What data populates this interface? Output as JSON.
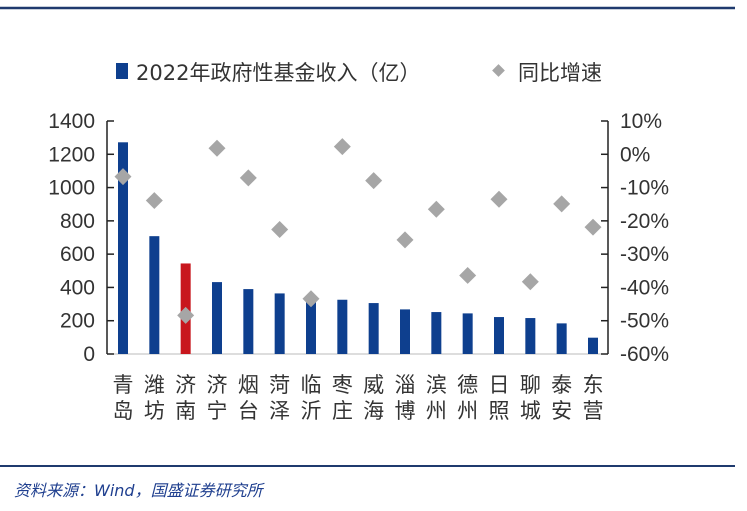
{
  "chart_data": {
    "type": "bar",
    "categories": [
      [
        "青",
        "岛"
      ],
      [
        "潍",
        "坊"
      ],
      [
        "济",
        "南"
      ],
      [
        "济",
        "宁"
      ],
      [
        "烟",
        "台"
      ],
      [
        "菏",
        "泽"
      ],
      [
        "临",
        "沂"
      ],
      [
        "枣",
        "庄"
      ],
      [
        "威",
        "海"
      ],
      [
        "淄",
        "博"
      ],
      [
        "滨",
        "州"
      ],
      [
        "德",
        "州"
      ],
      [
        "日",
        "照"
      ],
      [
        "聊",
        "城"
      ],
      [
        "泰",
        "安"
      ],
      [
        "东",
        "营"
      ]
    ],
    "series": [
      {
        "name": "2022年政府性基金收入（亿）",
        "type": "bar",
        "axis": "left",
        "values": [
          1272,
          708,
          544,
          432,
          390,
          364,
          335,
          326,
          306,
          268,
          252,
          244,
          222,
          216,
          184,
          98
        ]
      },
      {
        "name": "同比增速",
        "type": "scatter",
        "axis": "right",
        "values": [
          -6.7,
          -13.9,
          -48.4,
          1.8,
          -7.1,
          -22.6,
          -43.4,
          2.3,
          -7.9,
          -25.7,
          -16.5,
          -36.4,
          -13.5,
          -38.3,
          -14.9,
          -21.9
        ]
      }
    ],
    "highlight_index": 2,
    "ylim": [
      0,
      1400
    ],
    "yticks": [
      "0",
      "200",
      "400",
      "600",
      "800",
      "1000",
      "1200",
      "1400"
    ],
    "y2lim": [
      -60,
      10
    ],
    "y2ticks": [
      "-60%",
      "-50%",
      "-40%",
      "-30%",
      "-20%",
      "-10%",
      "0%",
      "10%"
    ],
    "legend_placement": "top",
    "colors": {
      "bar": "#0e3f8e",
      "highlight": "#c8161d",
      "marker": "#a6a6a6",
      "rule": "#1f3a6e"
    }
  },
  "source": "资料来源：Wind，国盛证券研究所"
}
